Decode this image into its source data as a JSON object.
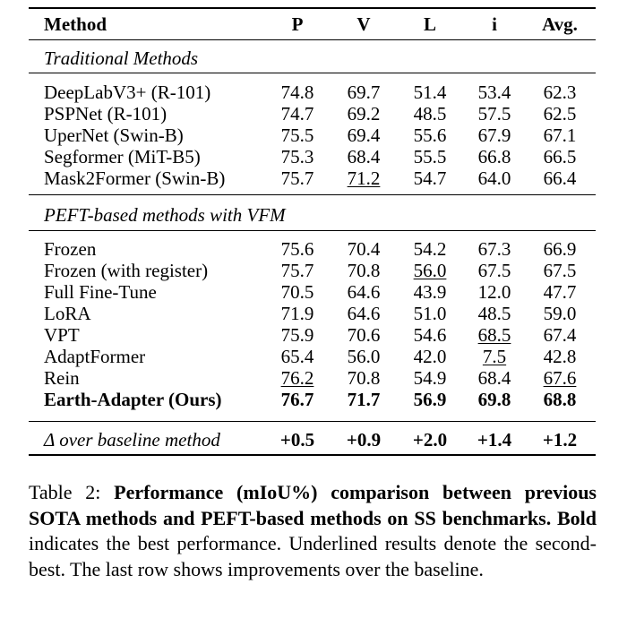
{
  "table": {
    "columns": [
      "Method",
      "P",
      "V",
      "L",
      "i",
      "Avg."
    ],
    "sections": [
      {
        "title": "Traditional Methods",
        "rows": [
          {
            "method": "DeepLabV3+ (R-101)",
            "values": [
              "74.8",
              "69.7",
              "51.4",
              "53.4",
              "62.3"
            ]
          },
          {
            "method": "PSPNet (R-101)",
            "values": [
              "74.7",
              "69.2",
              "48.5",
              "57.5",
              "62.5"
            ]
          },
          {
            "method": "UperNet (Swin-B)",
            "values": [
              "75.5",
              "69.4",
              "55.6",
              "67.9",
              "67.1"
            ]
          },
          {
            "method": "Segformer (MiT-B5)",
            "values": [
              "75.3",
              "68.4",
              "55.5",
              "66.8",
              "66.5"
            ]
          },
          {
            "method": "Mask2Former (Swin-B)",
            "values": [
              "75.7",
              "71.2",
              "54.7",
              "64.0",
              "66.4"
            ]
          }
        ]
      },
      {
        "title": "PEFT-based methods with VFM",
        "rows": [
          {
            "method": "Frozen",
            "values": [
              "75.6",
              "70.4",
              "54.2",
              "67.3",
              "66.9"
            ]
          },
          {
            "method": "Frozen (with register)",
            "values": [
              "75.7",
              "70.8",
              "56.0",
              "67.5",
              "67.5"
            ]
          },
          {
            "method": "Full Fine-Tune",
            "values": [
              "70.5",
              "64.6",
              "43.9",
              "12.0",
              "47.7"
            ]
          },
          {
            "method": "LoRA",
            "values": [
              "71.9",
              "64.6",
              "51.0",
              "48.5",
              "59.0"
            ]
          },
          {
            "method": "VPT",
            "values": [
              "75.9",
              "70.6",
              "54.6",
              "68.5",
              "67.4"
            ]
          },
          {
            "method": "AdaptFormer",
            "values": [
              "65.4",
              "56.0",
              "42.0",
              "7.5",
              "42.8"
            ]
          },
          {
            "method": "Rein",
            "values": [
              "76.2",
              "70.8",
              "54.9",
              "68.4",
              "67.6"
            ]
          },
          {
            "method": "Earth-Adapter (Ours)",
            "values": [
              "76.7",
              "71.7",
              "56.9",
              "69.8",
              "68.8"
            ]
          }
        ]
      }
    ],
    "delta": {
      "label": "Δ over baseline method",
      "values": [
        "+0.5",
        "+0.9",
        "+2.0",
        "+1.4",
        "+1.2"
      ]
    }
  },
  "caption": {
    "prefix": "Table 2: ",
    "bold_title": "Performance (mIoU%) comparison between previous SOTA methods and PEFT-based methods on SS benchmarks.",
    "bold_word": "Bold",
    "rest": "indicates the best performance. Underlined results denote the second-best. The last row shows improvements over the baseline."
  }
}
